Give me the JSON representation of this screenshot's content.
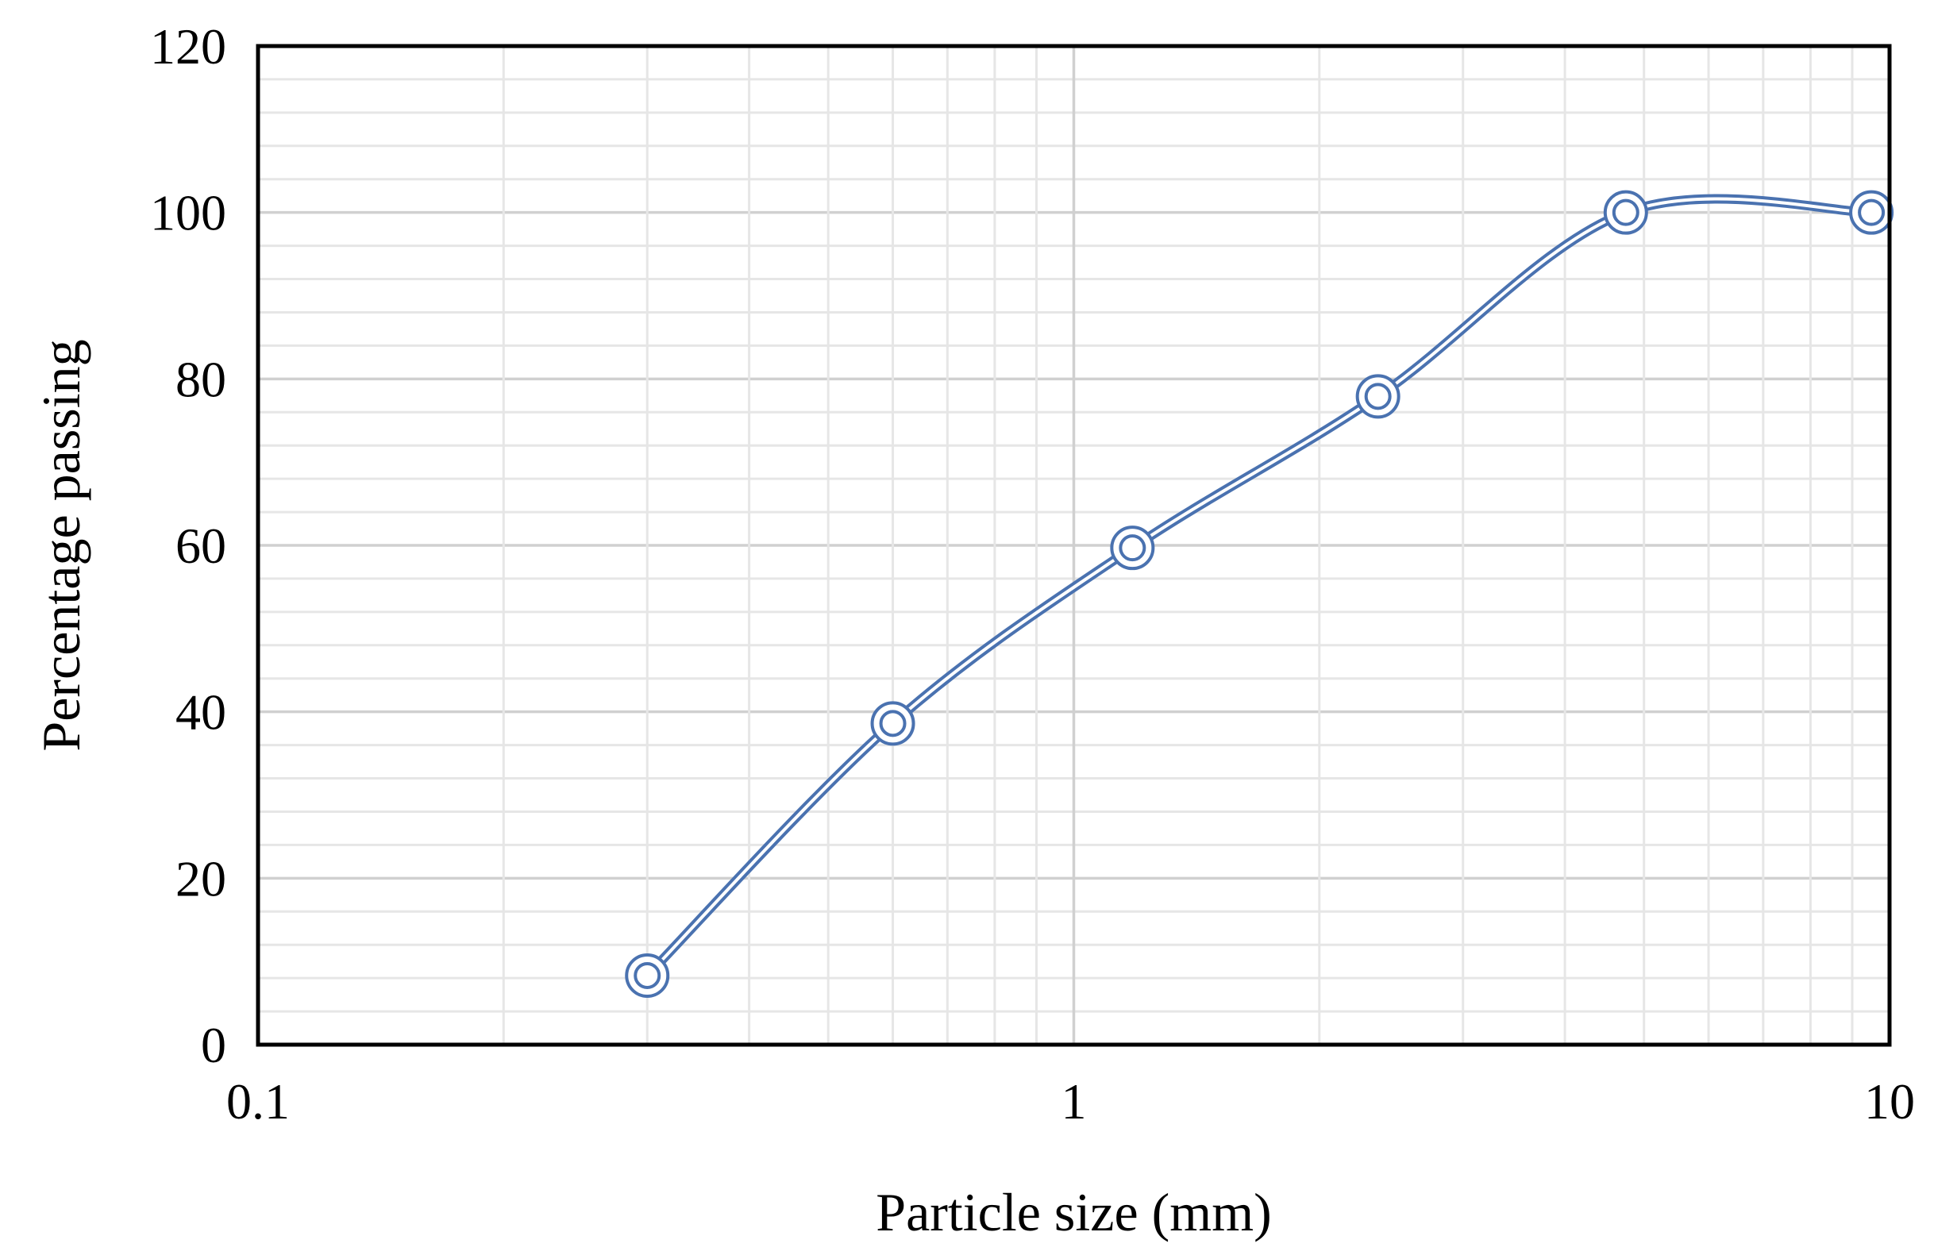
{
  "chart_data": {
    "type": "scatter",
    "title": "",
    "xlabel": "Particle size (mm)",
    "ylabel": "Percentage passing",
    "x_scale": "log",
    "xlim": [
      0.1,
      10
    ],
    "ylim": [
      0,
      120
    ],
    "x_ticks": [
      "0.1",
      "1",
      "10"
    ],
    "y_ticks": [
      "0",
      "20",
      "40",
      "60",
      "80",
      "100",
      "120"
    ],
    "grid": true,
    "line": "smoothed",
    "marker": "double-circle",
    "series": [
      {
        "x": [
          0.3,
          0.6,
          1.18,
          2.36,
          4.75,
          9.5
        ],
        "y": [
          8.3,
          38.6,
          59.7,
          77.9,
          100,
          100
        ],
        "color": "#4a72b0"
      }
    ]
  }
}
